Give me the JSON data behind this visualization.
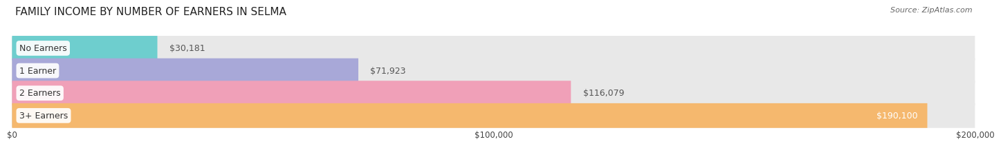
{
  "title": "FAMILY INCOME BY NUMBER OF EARNERS IN SELMA",
  "source": "Source: ZipAtlas.com",
  "categories": [
    "No Earners",
    "1 Earner",
    "2 Earners",
    "3+ Earners"
  ],
  "values": [
    30181,
    71923,
    116079,
    190100
  ],
  "bar_colors": [
    "#6ecece",
    "#a8a8d8",
    "#f0a0b8",
    "#f5b86e"
  ],
  "bar_bg_color": "#e8e8e8",
  "max_value": 200000,
  "xtick_values": [
    0,
    100000,
    200000
  ],
  "xtick_labels": [
    "$0",
    "$100,000",
    "$200,000"
  ],
  "value_labels": [
    "$30,181",
    "$71,923",
    "$116,079",
    "$190,100"
  ],
  "background_color": "#ffffff",
  "title_fontsize": 11,
  "label_fontsize": 9,
  "value_fontsize": 9,
  "bar_height": 0.55,
  "label_inside_threshold": 0.88
}
